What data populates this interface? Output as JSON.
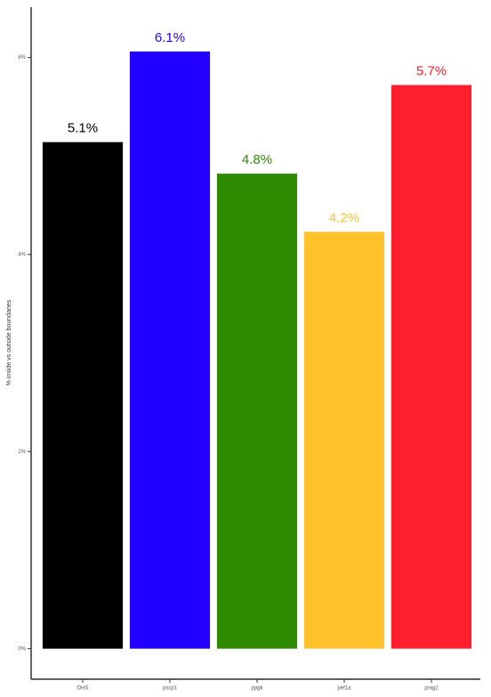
{
  "chart_data": {
    "type": "bar",
    "y_label": "% inside vs outside boundaries",
    "categories": [
      "DHS",
      "pscp1",
      "ppgk",
      "pef1a",
      "prag2"
    ],
    "values": [
      5.14,
      6.06,
      4.82,
      4.23,
      5.72
    ],
    "value_labels": [
      "5.1%",
      "6.1%",
      "4.8%",
      "4.2%",
      "5.7%"
    ],
    "colors": [
      "#000000",
      "#2200ff",
      "#2e8b00",
      "#ffc22a",
      "#ff1e2d"
    ],
    "ylim": [
      -0.31,
      6.51
    ],
    "yticks": [
      {
        "value": 0,
        "label": "0%"
      },
      {
        "value": 2,
        "label": "2%"
      },
      {
        "value": 4,
        "label": "4%"
      },
      {
        "value": 6,
        "label": "6%"
      }
    ],
    "grid": false
  }
}
